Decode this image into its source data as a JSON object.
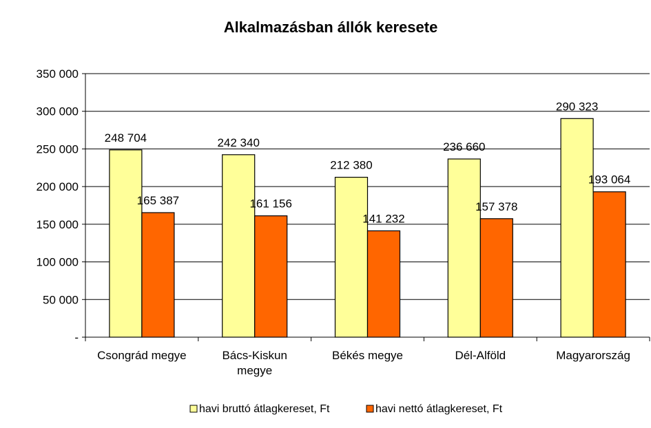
{
  "chart_data": {
    "type": "bar",
    "title": "Alkalmazásban állók keresete",
    "categories": [
      [
        "Csongrád megye"
      ],
      [
        "Bács-Kiskun",
        "megye"
      ],
      [
        "Békés megye"
      ],
      [
        "Dél-Alföld"
      ],
      [
        "Magyarország"
      ]
    ],
    "series": [
      {
        "name": "havi bruttó átlagkereset, Ft",
        "color": "#FFFF99",
        "values": [
          248704,
          242340,
          212380,
          236660,
          290323
        ],
        "labels": [
          "248 704",
          "242 340",
          "212 380",
          "236 660",
          "290 323"
        ]
      },
      {
        "name": "havi nettó átlagkereset, Ft",
        "color": "#FF6600",
        "values": [
          165387,
          161156,
          141232,
          157378,
          193064
        ],
        "labels": [
          "165 387",
          "161 156",
          "141 232",
          "157 378",
          "193 064"
        ]
      }
    ],
    "ylim": [
      0,
      350000
    ],
    "yticks": [
      0,
      50000,
      100000,
      150000,
      200000,
      250000,
      300000,
      350000
    ],
    "ytick_labels": [
      "-",
      "50 000",
      "100 000",
      "150 000",
      "200 000",
      "250 000",
      "300 000",
      "350 000"
    ],
    "grid": true,
    "legend": "bottom"
  }
}
